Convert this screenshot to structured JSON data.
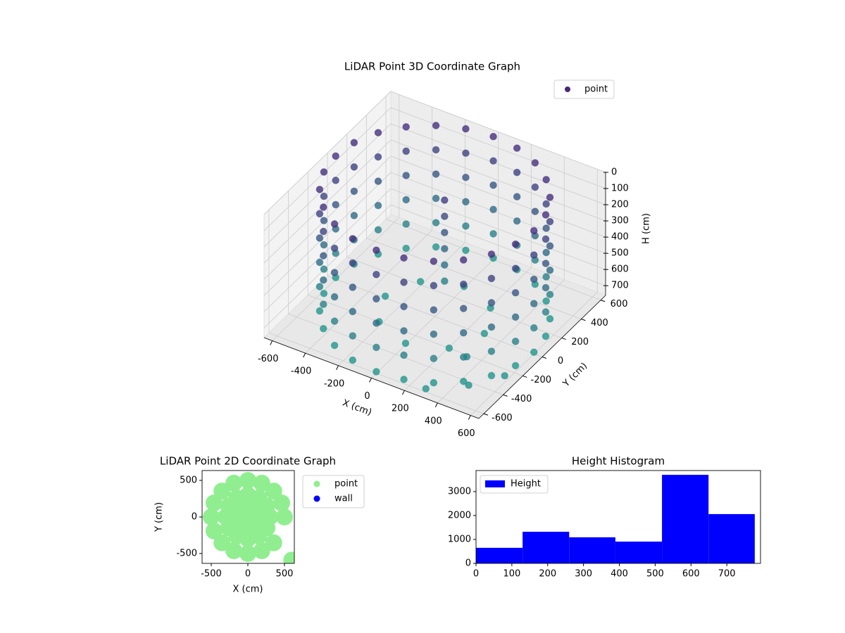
{
  "chart_data": [
    {
      "type": "scatter3d",
      "title": "LiDAR Point 3D Coordinate Graph",
      "xlabel": "X (cm)",
      "ylabel": "Y (cm)",
      "zlabel": "H (cm)",
      "series": [
        {
          "name": "point",
          "color": "#482878",
          "x": [
            600,
            580,
            520,
            424,
            300,
            155,
            0,
            -155,
            -300,
            -424,
            -520,
            -580,
            -600,
            -580,
            -520,
            -424,
            -300,
            -155,
            0,
            155,
            300,
            424,
            520,
            580,
            600,
            580,
            520,
            424,
            300,
            155,
            0,
            -155,
            -300,
            -424,
            -520,
            -580,
            -600,
            -580,
            -520,
            -424,
            -300,
            -155,
            0,
            155,
            300,
            424,
            520,
            580,
            600,
            580,
            520,
            424,
            300,
            155,
            0,
            -155,
            -300,
            -424,
            -520,
            -580,
            -600,
            -580,
            -520,
            -424,
            -300,
            -155,
            0,
            155,
            300,
            424,
            520,
            580,
            600,
            580,
            520,
            424,
            300,
            155,
            0,
            -155,
            -300,
            -424,
            -520,
            -580,
            -600,
            -580,
            -520,
            -424,
            -300,
            -155,
            0,
            155,
            300,
            424,
            520,
            580,
            600,
            580,
            520,
            424,
            300,
            155,
            0,
            -155,
            -300,
            -424,
            -520,
            -580,
            -600,
            -580,
            -520,
            -424,
            -300,
            -155,
            0,
            155,
            300,
            424,
            520,
            580,
            600,
            580,
            520,
            424,
            300,
            155,
            0,
            -155,
            -300,
            -424,
            -520,
            -580,
            -600,
            -580,
            -520,
            -424,
            -300,
            -155,
            0,
            155,
            300,
            424,
            520,
            580,
            0,
            0,
            0,
            0,
            0,
            0,
            300,
            212,
            0,
            -212,
            -300,
            -212,
            0,
            212,
            500,
            400,
            600,
            300
          ],
          "y": [
            0,
            155,
            300,
            424,
            520,
            580,
            600,
            580,
            520,
            424,
            300,
            155,
            0,
            -155,
            -300,
            -424,
            -520,
            -580,
            -600,
            -580,
            -520,
            -424,
            -300,
            -155,
            0,
            155,
            300,
            424,
            520,
            580,
            600,
            580,
            520,
            424,
            300,
            155,
            0,
            -155,
            -300,
            -424,
            -520,
            -580,
            -600,
            -580,
            -520,
            -424,
            -300,
            -155,
            0,
            155,
            300,
            424,
            520,
            580,
            600,
            580,
            520,
            424,
            300,
            155,
            0,
            -155,
            -300,
            -424,
            -520,
            -580,
            -600,
            -580,
            -520,
            -424,
            -300,
            -155,
            0,
            155,
            300,
            424,
            520,
            580,
            600,
            580,
            520,
            424,
            300,
            155,
            0,
            -155,
            -300,
            -424,
            -520,
            -580,
            -600,
            -580,
            -520,
            -424,
            -300,
            -155,
            0,
            155,
            300,
            424,
            520,
            580,
            600,
            580,
            520,
            424,
            300,
            155,
            0,
            -155,
            -300,
            -424,
            -520,
            -580,
            -600,
            -580,
            -520,
            -424,
            -300,
            -155,
            0,
            155,
            300,
            424,
            520,
            580,
            600,
            580,
            520,
            424,
            300,
            155,
            0,
            -155,
            -300,
            -424,
            -520,
            -580,
            -600,
            -580,
            -520,
            -424,
            -300,
            -155,
            100,
            100,
            100,
            100,
            100,
            100,
            0,
            212,
            300,
            212,
            0,
            -212,
            -300,
            -212,
            -500,
            -350,
            -300,
            -600
          ],
          "z": [
            0,
            0,
            0,
            0,
            0,
            0,
            0,
            0,
            0,
            0,
            0,
            0,
            0,
            0,
            0,
            0,
            0,
            0,
            0,
            0,
            0,
            0,
            0,
            0,
            150,
            150,
            150,
            150,
            150,
            150,
            150,
            150,
            150,
            150,
            150,
            150,
            150,
            150,
            150,
            150,
            150,
            150,
            150,
            150,
            150,
            150,
            150,
            150,
            300,
            300,
            300,
            300,
            300,
            300,
            300,
            300,
            300,
            300,
            300,
            300,
            300,
            300,
            300,
            300,
            300,
            300,
            300,
            300,
            300,
            300,
            300,
            300,
            450,
            450,
            450,
            450,
            450,
            450,
            450,
            450,
            450,
            450,
            450,
            450,
            450,
            450,
            450,
            450,
            450,
            450,
            450,
            450,
            450,
            450,
            450,
            450,
            600,
            600,
            600,
            600,
            600,
            600,
            600,
            600,
            600,
            600,
            600,
            600,
            600,
            600,
            600,
            600,
            600,
            600,
            600,
            600,
            600,
            600,
            600,
            600,
            750,
            750,
            750,
            750,
            750,
            750,
            750,
            750,
            750,
            750,
            750,
            750,
            750,
            750,
            750,
            750,
            750,
            750,
            750,
            750,
            750,
            750,
            750,
            750,
            100,
            200,
            300,
            400,
            500,
            600,
            750,
            750,
            750,
            750,
            750,
            750,
            750,
            750,
            700,
            650,
            720,
            740
          ]
        }
      ],
      "colormap": [
        "#46307e",
        "#22968b"
      ],
      "xlim": [
        -650,
        650
      ],
      "ylim": [
        -650,
        650
      ],
      "zlim": [
        0,
        760
      ],
      "z_inverted": true,
      "xticks": [
        -600,
        -400,
        -200,
        0,
        200,
        400,
        600
      ],
      "yticks": [
        -600,
        -400,
        -200,
        0,
        200,
        400,
        600
      ],
      "zticks": [
        0,
        100,
        200,
        300,
        400,
        500,
        600,
        700
      ],
      "grid": true,
      "legend": "upper right"
    },
    {
      "type": "scatter",
      "title": "LiDAR Point 2D Coordinate Graph",
      "xlabel": "X (cm)",
      "ylabel": "Y (cm)",
      "series": [
        {
          "name": "point",
          "color": "#90ee90",
          "x": [
            500,
            462,
            354,
            191,
            0,
            -191,
            -354,
            -462,
            -500,
            -462,
            -354,
            -191,
            0,
            191,
            354,
            300,
            260,
            150,
            0,
            -150,
            -260,
            -300,
            -260,
            -150,
            0,
            150,
            260,
            100,
            50,
            -50,
            -100,
            -50,
            50,
            0,
            600
          ],
          "y": [
            0,
            191,
            354,
            462,
            500,
            462,
            354,
            191,
            0,
            -191,
            -354,
            -462,
            -500,
            -462,
            -354,
            0,
            150,
            260,
            300,
            260,
            150,
            0,
            -150,
            -260,
            -300,
            -260,
            -150,
            0,
            87,
            87,
            0,
            -87,
            -87,
            0,
            -590
          ]
        },
        {
          "name": "wall",
          "color": "#0000ff",
          "x": [],
          "y": []
        }
      ],
      "xlim": [
        -625,
        635
      ],
      "ylim": [
        -635,
        635
      ],
      "xticks": [
        -500,
        0,
        500
      ],
      "yticks": [
        -500,
        0,
        500
      ],
      "legend": "outside right"
    },
    {
      "type": "histogram",
      "title": "Height Histogram",
      "series": [
        {
          "name": "Height",
          "color": "#0000ff",
          "bins": [
            0,
            130,
            260,
            389,
            519,
            649,
            778
          ],
          "values": [
            650,
            1320,
            1090,
            910,
            3700,
            2060
          ]
        }
      ],
      "xlim": [
        0,
        794
      ],
      "ylim": [
        0,
        3880
      ],
      "xticks": [
        0,
        100,
        200,
        300,
        400,
        500,
        600,
        700
      ],
      "yticks": [
        0,
        1000,
        2000,
        3000
      ],
      "legend": "upper left"
    }
  ]
}
